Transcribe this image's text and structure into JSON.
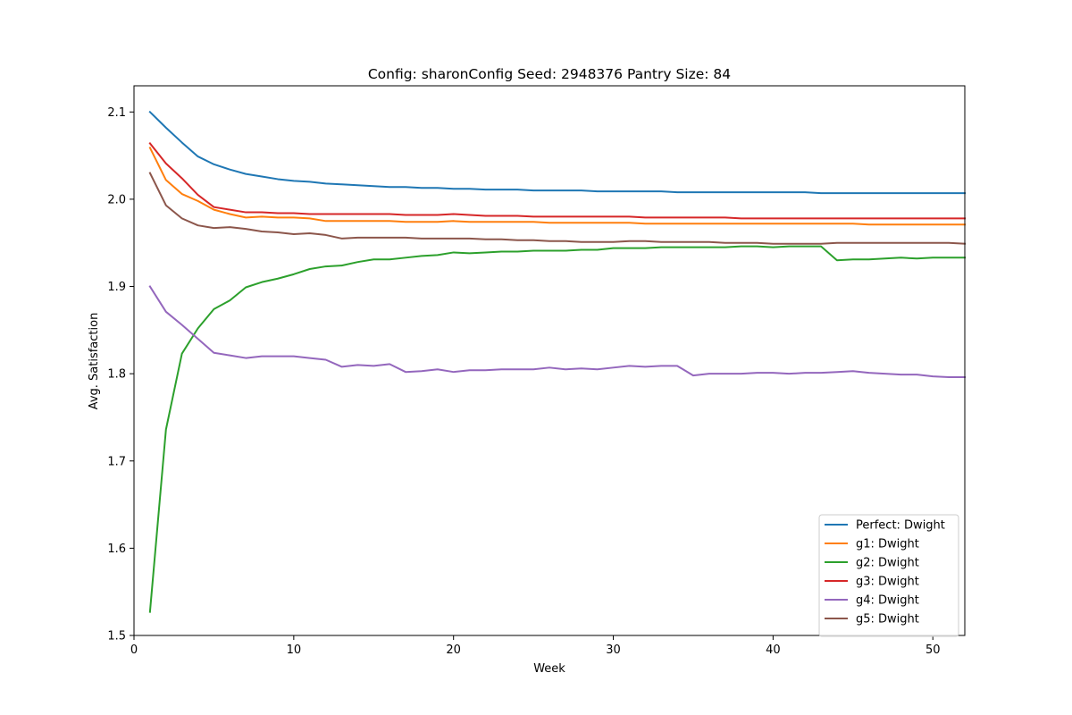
{
  "chart_data": {
    "type": "line",
    "title": "Config: sharonConfig    Seed: 2948376    Pantry Size: 84",
    "xlabel": "Week",
    "ylabel": "Avg. Satisfaction",
    "xlim": [
      0,
      52
    ],
    "ylim": [
      1.5,
      2.13
    ],
    "xticks": [
      0,
      10,
      20,
      30,
      40,
      50
    ],
    "yticks": [
      1.5,
      1.6,
      1.7,
      1.8,
      1.9,
      2.0,
      2.1
    ],
    "grid": false,
    "legend_position": "lower-right",
    "x": [
      1,
      2,
      3,
      4,
      5,
      6,
      7,
      8,
      9,
      10,
      11,
      12,
      13,
      14,
      15,
      16,
      17,
      18,
      19,
      20,
      21,
      22,
      23,
      24,
      25,
      26,
      27,
      28,
      29,
      30,
      31,
      32,
      33,
      34,
      35,
      36,
      37,
      38,
      39,
      40,
      41,
      42,
      43,
      44,
      45,
      46,
      47,
      48,
      49,
      50,
      51,
      52
    ],
    "series": [
      {
        "name": "Perfect: Dwight",
        "color": "#1f77b4",
        "values": [
          2.1,
          2.082,
          2.065,
          2.049,
          2.04,
          2.034,
          2.029,
          2.026,
          2.023,
          2.021,
          2.02,
          2.018,
          2.017,
          2.016,
          2.015,
          2.014,
          2.014,
          2.013,
          2.013,
          2.012,
          2.012,
          2.011,
          2.011,
          2.011,
          2.01,
          2.01,
          2.01,
          2.01,
          2.009,
          2.009,
          2.009,
          2.009,
          2.009,
          2.008,
          2.008,
          2.008,
          2.008,
          2.008,
          2.008,
          2.008,
          2.008,
          2.008,
          2.007,
          2.007,
          2.007,
          2.007,
          2.007,
          2.007,
          2.007,
          2.007,
          2.007,
          2.007
        ]
      },
      {
        "name": "g1: Dwight",
        "color": "#ff7f0e",
        "values": [
          2.059,
          2.022,
          2.006,
          1.998,
          1.988,
          1.983,
          1.979,
          1.98,
          1.979,
          1.979,
          1.978,
          1.975,
          1.975,
          1.975,
          1.975,
          1.975,
          1.974,
          1.974,
          1.974,
          1.975,
          1.974,
          1.974,
          1.974,
          1.974,
          1.974,
          1.973,
          1.973,
          1.973,
          1.973,
          1.973,
          1.973,
          1.972,
          1.972,
          1.972,
          1.972,
          1.972,
          1.972,
          1.972,
          1.972,
          1.972,
          1.972,
          1.972,
          1.972,
          1.972,
          1.972,
          1.971,
          1.971,
          1.971,
          1.971,
          1.971,
          1.971,
          1.971
        ]
      },
      {
        "name": "g2: Dwight",
        "color": "#2ca02c",
        "values": [
          1.527,
          1.736,
          1.823,
          1.852,
          1.874,
          1.884,
          1.899,
          1.905,
          1.909,
          1.914,
          1.92,
          1.923,
          1.924,
          1.928,
          1.931,
          1.931,
          1.933,
          1.935,
          1.936,
          1.939,
          1.938,
          1.939,
          1.94,
          1.94,
          1.941,
          1.941,
          1.941,
          1.942,
          1.942,
          1.944,
          1.944,
          1.944,
          1.945,
          1.945,
          1.945,
          1.945,
          1.945,
          1.946,
          1.946,
          1.945,
          1.946,
          1.946,
          1.946,
          1.93,
          1.931,
          1.931,
          1.932,
          1.933,
          1.932,
          1.933,
          1.933,
          1.933
        ]
      },
      {
        "name": "g3: Dwight",
        "color": "#d62728",
        "values": [
          2.064,
          2.041,
          2.024,
          2.005,
          1.991,
          1.988,
          1.985,
          1.985,
          1.984,
          1.984,
          1.983,
          1.983,
          1.983,
          1.983,
          1.983,
          1.983,
          1.982,
          1.982,
          1.982,
          1.983,
          1.982,
          1.981,
          1.981,
          1.981,
          1.98,
          1.98,
          1.98,
          1.98,
          1.98,
          1.98,
          1.98,
          1.979,
          1.979,
          1.979,
          1.979,
          1.979,
          1.979,
          1.978,
          1.978,
          1.978,
          1.978,
          1.978,
          1.978,
          1.978,
          1.978,
          1.978,
          1.978,
          1.978,
          1.978,
          1.978,
          1.978,
          1.978
        ]
      },
      {
        "name": "g4: Dwight",
        "color": "#9467bd",
        "values": [
          1.9,
          1.871,
          1.856,
          1.84,
          1.824,
          1.821,
          1.818,
          1.82,
          1.82,
          1.82,
          1.818,
          1.816,
          1.808,
          1.81,
          1.809,
          1.811,
          1.802,
          1.803,
          1.805,
          1.802,
          1.804,
          1.804,
          1.805,
          1.805,
          1.805,
          1.807,
          1.805,
          1.806,
          1.805,
          1.807,
          1.809,
          1.808,
          1.809,
          1.809,
          1.798,
          1.8,
          1.8,
          1.8,
          1.801,
          1.801,
          1.8,
          1.801,
          1.801,
          1.802,
          1.803,
          1.801,
          1.8,
          1.799,
          1.799,
          1.797,
          1.796,
          1.796
        ]
      },
      {
        "name": "g5: Dwight",
        "color": "#8c564b",
        "values": [
          2.03,
          1.993,
          1.978,
          1.97,
          1.967,
          1.968,
          1.966,
          1.963,
          1.962,
          1.96,
          1.961,
          1.959,
          1.955,
          1.956,
          1.956,
          1.956,
          1.956,
          1.955,
          1.955,
          1.955,
          1.955,
          1.954,
          1.954,
          1.953,
          1.953,
          1.952,
          1.952,
          1.951,
          1.951,
          1.951,
          1.952,
          1.952,
          1.951,
          1.951,
          1.951,
          1.951,
          1.95,
          1.95,
          1.95,
          1.949,
          1.949,
          1.949,
          1.949,
          1.95,
          1.95,
          1.95,
          1.95,
          1.95,
          1.95,
          1.95,
          1.95,
          1.949
        ]
      }
    ]
  }
}
